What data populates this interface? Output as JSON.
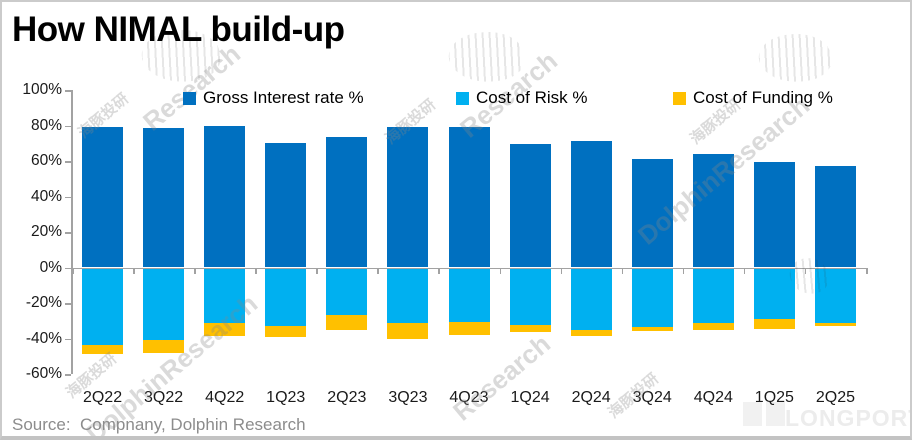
{
  "title": "How NIMAL build-up",
  "source_note": "Source:  Compnany, Dolphin Research",
  "watermarks": {
    "dolphin_cn": "海豚投研",
    "dolphin_en": "DolphinResearch",
    "research": "Research",
    "longport": "LONGPORT"
  },
  "chart_data": {
    "type": "bar",
    "stacked": true,
    "title": "How NIMAL build-up",
    "categories": [
      "2Q22",
      "3Q22",
      "4Q22",
      "1Q23",
      "2Q23",
      "3Q23",
      "4Q23",
      "1Q24",
      "2Q24",
      "3Q24",
      "4Q24",
      "1Q25",
      "2Q25"
    ],
    "series": [
      {
        "name": "Gross Interest rate %",
        "color": "#0070C0",
        "values": [
          79.2,
          78.6,
          79.5,
          70.4,
          73.8,
          79.3,
          78.9,
          69.6,
          71.4,
          61.0,
          63.8,
          59.3,
          57.2
        ]
      },
      {
        "name": "Cost of Risk %",
        "color": "#00B0F0",
        "values": [
          -43.8,
          -40.9,
          -31.1,
          -33.0,
          -27.0,
          -31.1,
          -30.8,
          -32.6,
          -35.4,
          -33.5,
          -31.1,
          -29.2,
          -31.1
        ]
      },
      {
        "name": "Cost of Funding %",
        "color": "#FFC000",
        "values": [
          -4.9,
          -7.2,
          -7.7,
          -6.2,
          -8.2,
          -9.4,
          -7.2,
          -3.8,
          -3.2,
          -2.4,
          -4.3,
          -5.3,
          -1.7
        ]
      }
    ],
    "ylim": [
      -60,
      100
    ],
    "y_ticks": [
      100,
      80,
      60,
      40,
      20,
      0,
      -20,
      -40,
      -60
    ],
    "y_tick_labels": [
      "100%",
      "80%",
      "60%",
      "40%",
      "20%",
      "0%",
      "-20%",
      "-40%",
      "-60%"
    ],
    "xlabel": "",
    "ylabel": "",
    "legend_position": "top",
    "grid": false
  }
}
